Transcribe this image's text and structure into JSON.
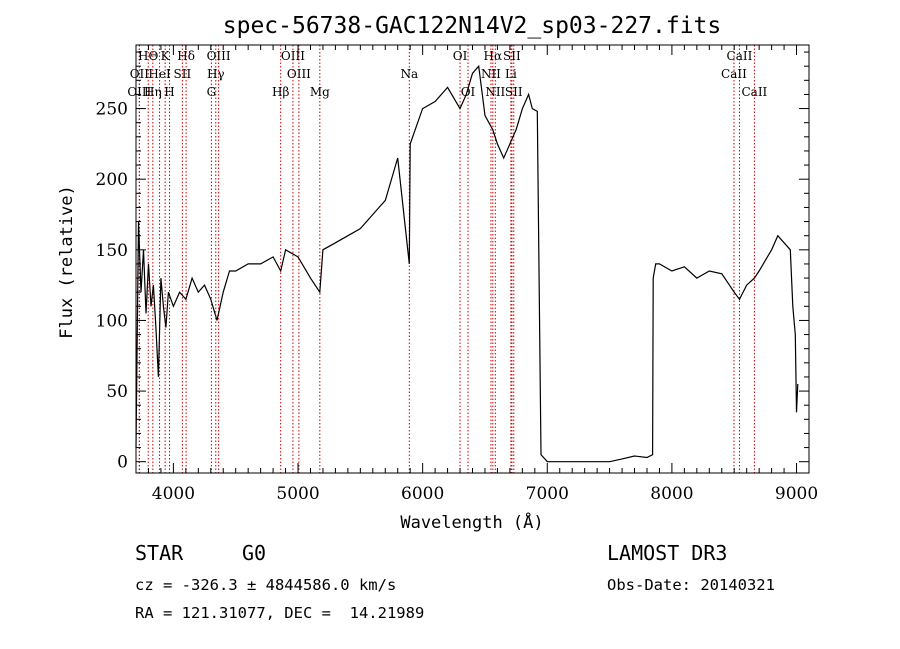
{
  "chart_data": {
    "type": "line",
    "title": "spec-56738-GAC122N14V2_sp03-227.fits",
    "xlabel": "Wavelength (Å)",
    "ylabel": "Flux (relative)",
    "xlim": [
      3700,
      9100
    ],
    "ylim": [
      -8,
      295
    ],
    "xticks": [
      4000,
      5000,
      6000,
      7000,
      8000,
      9000
    ],
    "yticks": [
      0,
      50,
      100,
      150,
      200,
      250
    ],
    "grid": false,
    "series": [
      {
        "x": [
          3700,
          3720,
          3740,
          3760,
          3780,
          3800,
          3820,
          3840,
          3860,
          3880,
          3900,
          3920,
          3940,
          3960,
          3980,
          4000,
          4050,
          4100,
          4150,
          4200,
          4250,
          4300,
          4350,
          4400,
          4450,
          4500,
          4600,
          4700,
          4800,
          4861,
          4900,
          5000,
          5100,
          5175,
          5200,
          5300,
          5400,
          5500,
          5600,
          5700,
          5800,
          5893,
          5900,
          6000,
          6100,
          6200,
          6300,
          6350,
          6400,
          6450,
          6500,
          6563,
          6600,
          6650,
          6700,
          6750,
          6800,
          6850,
          6880,
          6920,
          6950,
          7000,
          7100,
          7200,
          7300,
          7400,
          7500,
          7600,
          7700,
          7800,
          7845,
          7850,
          7870,
          7900,
          8000,
          8100,
          8200,
          8300,
          8400,
          8500,
          8542,
          8600,
          8662,
          8700,
          8800,
          8850,
          8900,
          8950,
          8970,
          8990,
          9000,
          9010
        ],
        "y": [
          10,
          170,
          120,
          150,
          105,
          140,
          110,
          125,
          95,
          60,
          130,
          110,
          95,
          120,
          115,
          110,
          120,
          115,
          130,
          120,
          125,
          115,
          100,
          120,
          135,
          135,
          140,
          140,
          145,
          135,
          150,
          145,
          130,
          120,
          150,
          155,
          160,
          165,
          175,
          185,
          215,
          140,
          225,
          250,
          255,
          265,
          250,
          260,
          275,
          280,
          245,
          235,
          225,
          215,
          225,
          235,
          250,
          260,
          250,
          248,
          5,
          0,
          0,
          0,
          0,
          0,
          0,
          2,
          4,
          3,
          5,
          130,
          140,
          140,
          135,
          138,
          130,
          135,
          133,
          120,
          115,
          125,
          130,
          135,
          150,
          160,
          155,
          150,
          110,
          90,
          35,
          55
        ]
      }
    ],
    "line_color": "#000000",
    "marker_color": "#cc0000",
    "line_markers": [
      {
        "label": "HΘ",
        "x": 3798,
        "row": 0
      },
      {
        "label": "OII",
        "x": 3727,
        "row": 1
      },
      {
        "label": "OIII",
        "x": 3727,
        "row": 2
      },
      {
        "label": "K",
        "x": 3934,
        "row": 0
      },
      {
        "label": "HeI",
        "x": 3889,
        "row": 1
      },
      {
        "label": "Hη",
        "x": 3835,
        "row": 2
      },
      {
        "label": "SII",
        "x": 4072,
        "row": 1
      },
      {
        "label": "H",
        "x": 3969,
        "row": 2
      },
      {
        "label": "Hδ",
        "x": 4102,
        "row": 0
      },
      {
        "label": "OIII",
        "x": 4363,
        "row": 0
      },
      {
        "label": "Hγ",
        "x": 4340,
        "row": 1
      },
      {
        "label": "G",
        "x": 4305,
        "row": 2
      },
      {
        "label": "Hβ",
        "x": 4861,
        "row": 2
      },
      {
        "label": "OIII",
        "x": 4959,
        "row": 0
      },
      {
        "label": "OIII",
        "x": 5007,
        "row": 1
      },
      {
        "label": "Mg",
        "x": 5175,
        "row": 2
      },
      {
        "label": "Na",
        "x": 5893,
        "row": 1
      },
      {
        "label": "OI",
        "x": 6300,
        "row": 0
      },
      {
        "label": "OI",
        "x": 6364,
        "row": 2
      },
      {
        "label": "Hα",
        "x": 6563,
        "row": 0
      },
      {
        "label": "NII",
        "x": 6548,
        "row": 1
      },
      {
        "label": "NII",
        "x": 6583,
        "row": 2
      },
      {
        "label": "SII",
        "x": 6716,
        "row": 0
      },
      {
        "label": "Li",
        "x": 6708,
        "row": 1
      },
      {
        "label": "SII",
        "x": 6731,
        "row": 2
      },
      {
        "label": "CaII",
        "x": 8542,
        "row": 0
      },
      {
        "label": "CaII",
        "x": 8498,
        "row": 1
      },
      {
        "label": "CaII",
        "x": 8662,
        "row": 2
      }
    ]
  },
  "info": {
    "class_label": "STAR",
    "subclass_label": "G0",
    "survey": "LAMOST DR3",
    "cz": "cz = -326.3 ± 4844586.0 km/s",
    "obs_date": "Obs-Date: 20140321",
    "coords": "RA = 121.31077, DEC =  14.21989"
  }
}
